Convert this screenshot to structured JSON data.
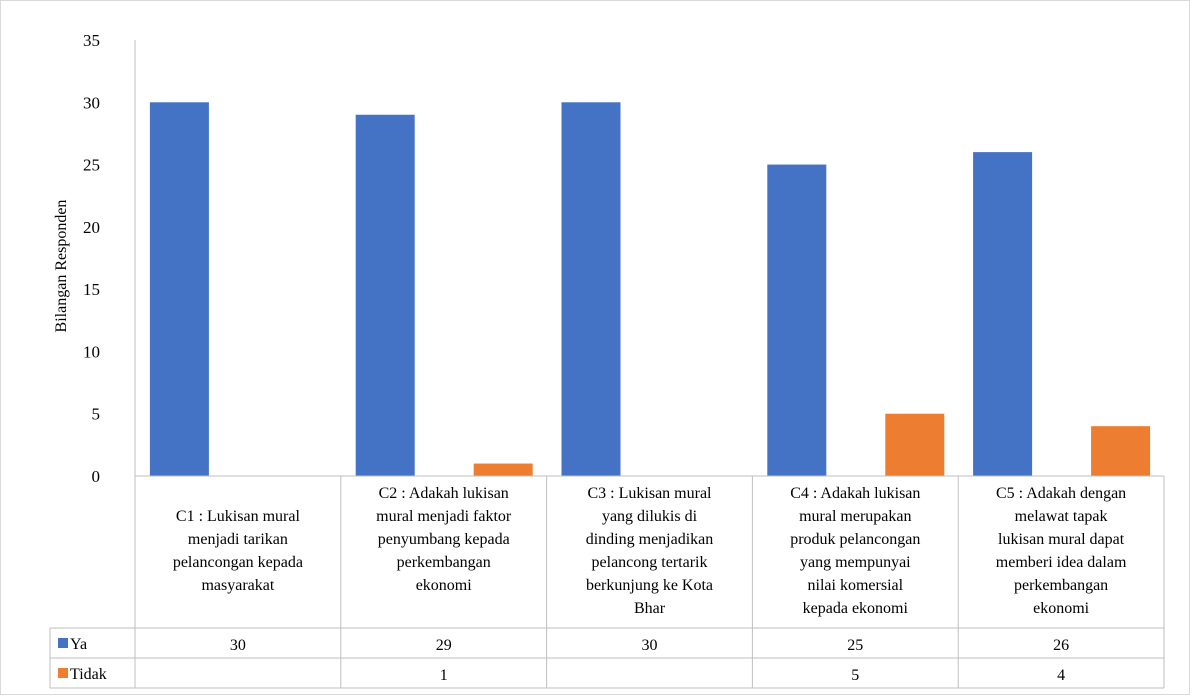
{
  "chart_data": {
    "type": "bar",
    "ylabel": "Bilangan Responden",
    "xlabel": "",
    "title": "",
    "ylim": [
      0,
      35
    ],
    "yticks": [
      0,
      5,
      10,
      15,
      20,
      25,
      30,
      35
    ],
    "grid": false,
    "legend_placement": "data-table-left",
    "categories": [
      "C1 : Lukisan mural menjadi tarikan pelancongan kepada masyarakat",
      "C2 : Adakah lukisan mural menjadi faktor penyumbang kepada perkembangan ekonomi",
      "C3 : Lukisan mural yang dilukis di dinding menjadikan pelancong tertarik berkunjung ke Kota Bhar",
      "C4 : Adakah lukisan mural merupakan produk pelancongan yang mempunyai nilai komersial kepada ekonomi",
      "C5 : Adakah dengan melawat tapak lukisan mural dapat memberi idea dalam perkembangan ekonomi"
    ],
    "category_lines": [
      [
        "C1 : Lukisan mural",
        "menjadi tarikan",
        "pelancongan kepada",
        "masyarakat"
      ],
      [
        "C2 : Adakah lukisan",
        "mural menjadi faktor",
        "penyumbang kepada",
        "perkembangan",
        "ekonomi"
      ],
      [
        "C3 : Lukisan mural",
        "yang dilukis di",
        "dinding menjadikan",
        "pelancong tertarik",
        "berkunjung ke Kota",
        "Bhar"
      ],
      [
        "C4 : Adakah lukisan",
        "mural merupakan",
        "produk pelancongan",
        "yang mempunyai",
        "nilai komersial",
        "kepada ekonomi"
      ],
      [
        "C5 : Adakah dengan",
        "melawat tapak",
        "lukisan mural dapat",
        "memberi idea dalam",
        "perkembangan",
        "ekonomi"
      ]
    ],
    "series": [
      {
        "name": "Ya",
        "color": "#4472C4",
        "values": [
          30,
          29,
          30,
          25,
          26
        ],
        "labels": [
          "30",
          "29",
          "30",
          "25",
          "26"
        ]
      },
      {
        "name": "Tidak",
        "color": "#ED7D31",
        "values": [
          0,
          1,
          0,
          5,
          4
        ],
        "labels": [
          "",
          "1",
          "",
          "5",
          "4"
        ]
      }
    ]
  }
}
